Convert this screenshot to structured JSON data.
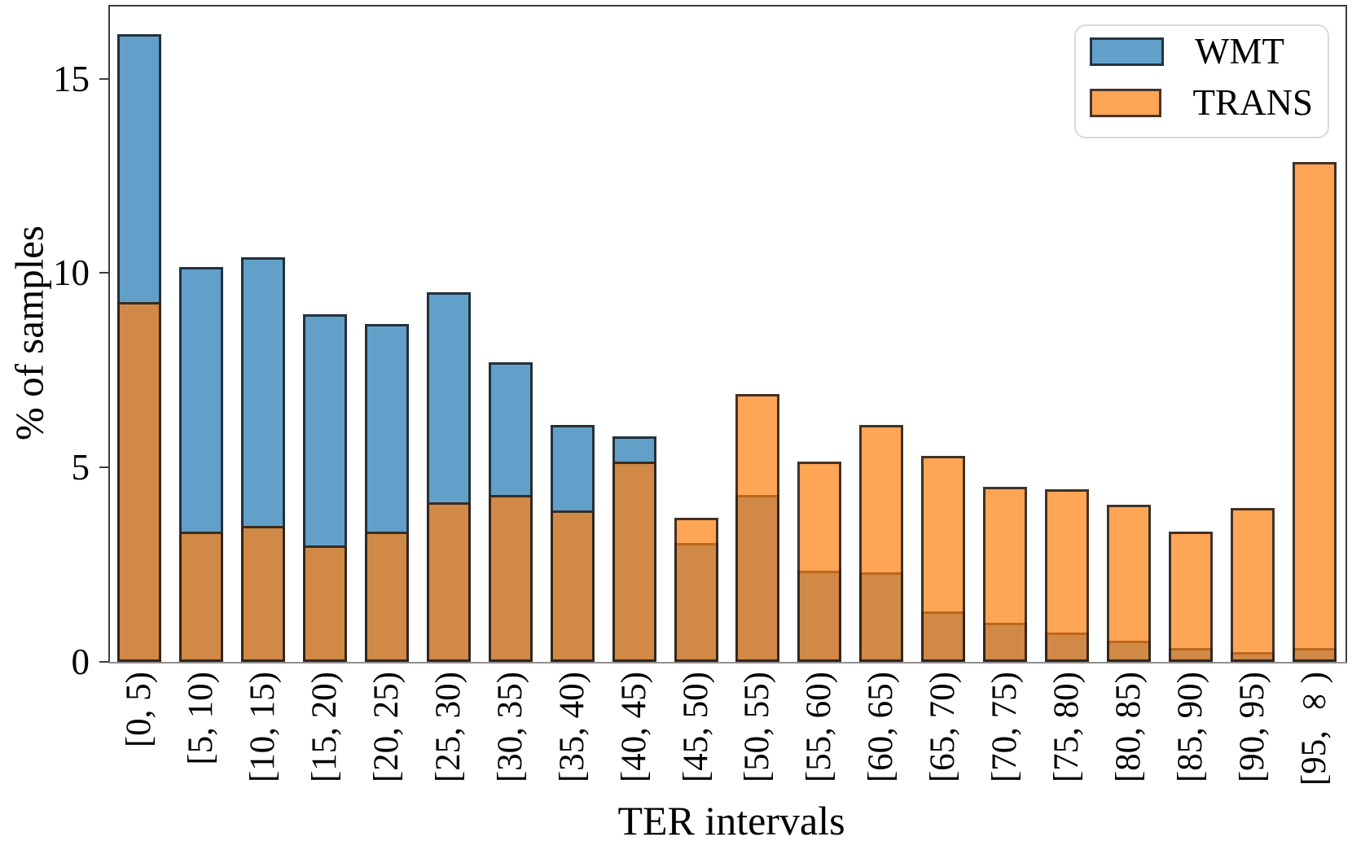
{
  "chart_data": {
    "type": "bar",
    "mode": "overlaid-translucent-histogram",
    "title": "",
    "xlabel": "TER intervals",
    "ylabel": "% of samples",
    "ylim": [
      0,
      16.9
    ],
    "yticks": [
      0,
      5,
      10,
      15
    ],
    "grid": false,
    "categories": [
      "[0, 5)",
      "[5, 10)",
      "[10, 15)",
      "[15, 20)",
      "[20, 25)",
      "[25, 30)",
      "[30, 35)",
      "[35, 40)",
      "[40, 45)",
      "[45, 50)",
      "[50, 55)",
      "[55, 60)",
      "[60, 65)",
      "[65, 70)",
      "[70, 75)",
      "[75, 80)",
      "[80, 85)",
      "[85, 90)",
      "[90, 95)",
      "[95, ∞)"
    ],
    "series": [
      {
        "name": "WMT",
        "fill_base": "#1f77b4",
        "alpha": 0.7,
        "fill_on_white": "#629fca",
        "values": [
          16.15,
          10.15,
          10.4,
          8.95,
          8.7,
          9.5,
          7.7,
          6.1,
          5.8,
          3.05,
          4.3,
          2.35,
          2.3,
          1.3,
          1.0,
          0.75,
          0.55,
          0.35,
          0.25,
          0.35
        ]
      },
      {
        "name": "TRANS",
        "fill_base": "#ff7f0e",
        "alpha": 0.7,
        "fill_on_white": "#ffa556",
        "values": [
          9.25,
          3.35,
          3.5,
          3.0,
          3.35,
          4.1,
          4.3,
          3.9,
          5.15,
          3.7,
          6.9,
          5.15,
          6.1,
          5.3,
          4.5,
          4.45,
          4.05,
          3.35,
          3.95,
          12.85
        ]
      }
    ],
    "overlap_color_on_white": "#d08947",
    "bar_edge_color": "#16181c",
    "legend": {
      "position": "upper right",
      "labels": [
        "WMT",
        "TRANS"
      ]
    }
  },
  "style": {
    "background": "#ffffff",
    "spine_color": "#3d3d3d",
    "baseline_color": "#8f8f8f",
    "legend_border_color": "#d9d9d9",
    "text_color": "#000000"
  }
}
